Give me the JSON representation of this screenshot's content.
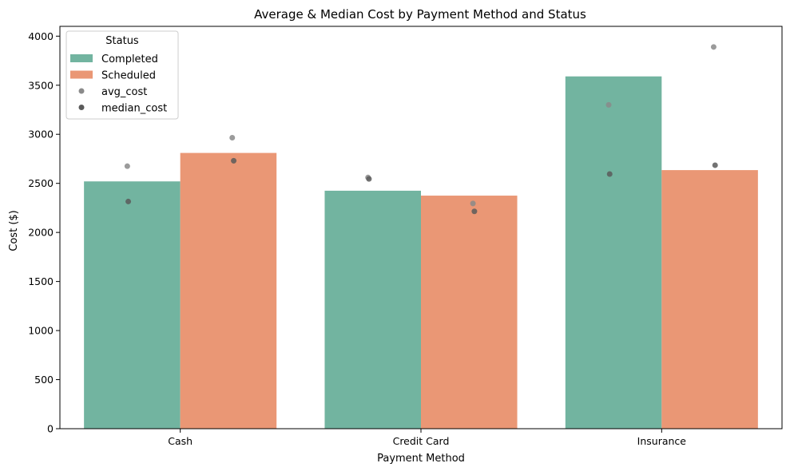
{
  "chart_data": {
    "type": "bar",
    "title": "Average & Median Cost by Payment Method and Status",
    "xlabel": "Payment Method",
    "ylabel": "Cost ($)",
    "ylim": [
      0,
      4100
    ],
    "yticks": [
      0,
      500,
      1000,
      1500,
      2000,
      2500,
      3000,
      3500,
      4000
    ],
    "categories": [
      "Cash",
      "Credit Card",
      "Insurance"
    ],
    "series": [
      {
        "name": "Completed",
        "color": "#72b4a0",
        "values": [
          2520,
          2425,
          3590
        ]
      },
      {
        "name": "Scheduled",
        "color": "#ea9775",
        "values": [
          2810,
          2375,
          2635
        ]
      }
    ],
    "points": [
      {
        "name": "avg_cost",
        "color": "#8a8a8a",
        "values": [
          {
            "category": "Cash",
            "status": "Completed",
            "y": 2675
          },
          {
            "category": "Cash",
            "status": "Scheduled",
            "y": 2965
          },
          {
            "category": "Credit Card",
            "status": "Completed",
            "y": 2560
          },
          {
            "category": "Credit Card",
            "status": "Scheduled",
            "y": 2295
          },
          {
            "category": "Insurance",
            "status": "Completed",
            "y": 3300
          },
          {
            "category": "Insurance",
            "status": "Scheduled",
            "y": 3890
          }
        ]
      },
      {
        "name": "median_cost",
        "color": "#5a5a5a",
        "values": [
          {
            "category": "Cash",
            "status": "Completed",
            "y": 2315
          },
          {
            "category": "Cash",
            "status": "Scheduled",
            "y": 2730
          },
          {
            "category": "Credit Card",
            "status": "Completed",
            "y": 2545
          },
          {
            "category": "Credit Card",
            "status": "Scheduled",
            "y": 2215
          },
          {
            "category": "Insurance",
            "status": "Completed",
            "y": 2595
          },
          {
            "category": "Insurance",
            "status": "Scheduled",
            "y": 2685
          }
        ]
      }
    ],
    "legend": {
      "title": "Status",
      "placement": "top-left",
      "entries": [
        {
          "label": "Completed",
          "kind": "bar",
          "color": "#72b4a0"
        },
        {
          "label": "Scheduled",
          "kind": "bar",
          "color": "#ea9775"
        },
        {
          "label": "avg_cost",
          "kind": "point",
          "color": "#8a8a8a"
        },
        {
          "label": "median_cost",
          "kind": "point",
          "color": "#5a5a5a"
        }
      ]
    },
    "grid": false
  }
}
